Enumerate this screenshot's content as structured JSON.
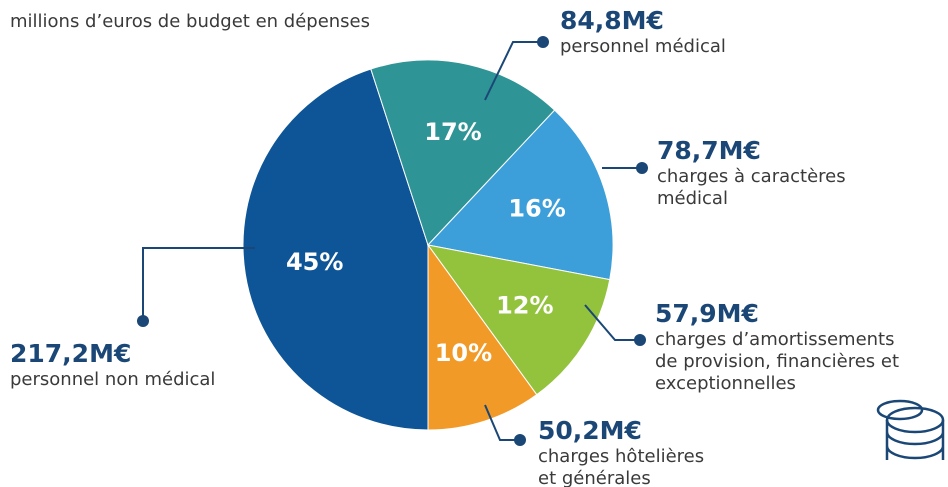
{
  "chart_data": {
    "type": "pie",
    "subtitle": "millions d’euros de budget en dépenses",
    "categories": [
      "personnel non médical",
      "personnel médical",
      "charges à caractères médical",
      "charges d’amortissements de provision, financières et exceptionnelles",
      "charges hôtelières et générales"
    ],
    "values": [
      45,
      17,
      16,
      12,
      10
    ],
    "value_labels": [
      "45%",
      "17%",
      "16%",
      "12%",
      "10%"
    ],
    "colors": [
      "#0e5597",
      "#2e9496",
      "#3d9fd9",
      "#93c23d",
      "#f29a28"
    ],
    "annotations": [
      {
        "amount": "217,2M€",
        "lines": [
          "personnel non médical"
        ]
      },
      {
        "amount": "84,8M€",
        "lines": [
          "personnel médical"
        ]
      },
      {
        "amount": "78,7M€",
        "lines": [
          "charges à caractères",
          "médical"
        ]
      },
      {
        "amount": "57,9M€",
        "lines": [
          "charges d’amortissements",
          "de provision, financières et",
          "exceptionnelles"
        ]
      },
      {
        "amount": "50,2M€",
        "lines": [
          "charges hôtelières",
          "et générales"
        ]
      }
    ]
  }
}
